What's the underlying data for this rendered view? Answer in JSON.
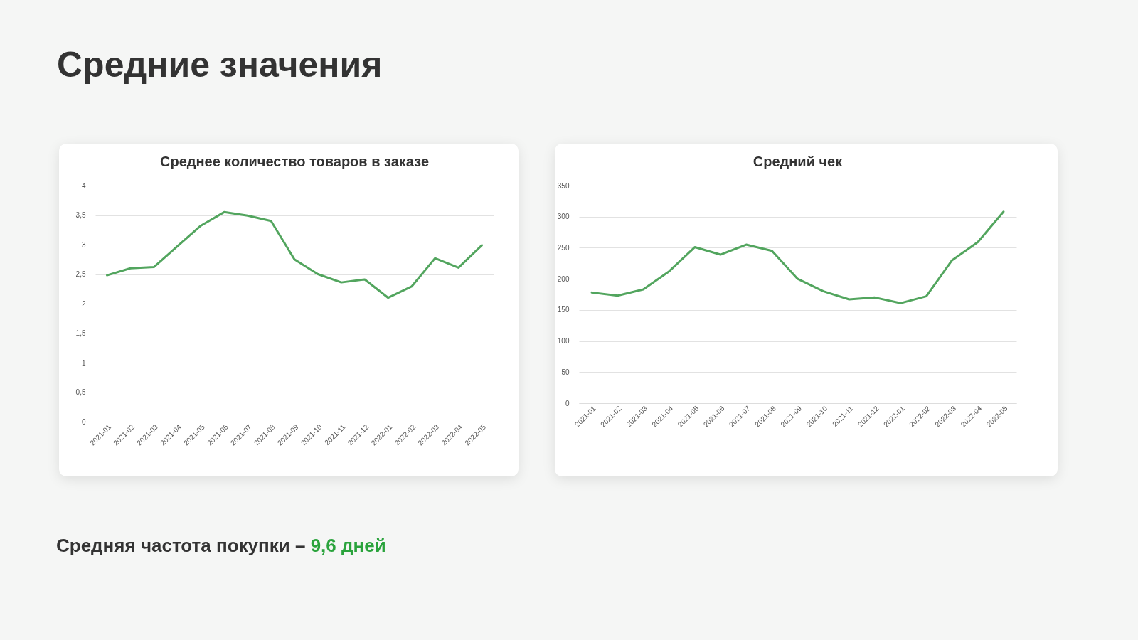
{
  "chart_data": [
    {
      "type": "line",
      "title": "Среднее количество товаров в заказе",
      "annotations": [
        "Средние значения"
      ],
      "categories": [
        "2021-01",
        "2021-02",
        "2021-03",
        "2021-04",
        "2021-05",
        "2021-06",
        "2021-07",
        "2021-08",
        "2021-09",
        "2021-10",
        "2021-11",
        "2021-12",
        "2022-01",
        "2022-02",
        "2022-03",
        "2022-04",
        "2022-05"
      ],
      "series": [
        {
          "color": "#52a55e",
          "values": [
            2.48,
            2.6,
            2.62,
            2.97,
            3.32,
            3.55,
            3.49,
            3.4,
            2.75,
            2.5,
            2.36,
            2.41,
            2.1,
            2.29,
            2.77,
            2.61,
            2.99
          ]
        }
      ],
      "ylim": [
        0,
        4
      ],
      "yticks": [
        0,
        {
          "value": 0.5,
          "label": "0,5"
        },
        1,
        {
          "value": 1.5,
          "label": "1,5"
        },
        2,
        {
          "value": 2.5,
          "label": "2,5"
        },
        3,
        {
          "value": 3.5,
          "label": "3,5"
        },
        4
      ],
      "grid": "y",
      "marker": "none",
      "line_style": "solid"
    },
    {
      "type": "line",
      "title": "Средний чек",
      "annotations": [
        "Средняя частота покупки –",
        "9,6 дней"
      ],
      "categories": [
        "2021-01",
        "2021-02",
        "2021-03",
        "2021-04",
        "2021-05",
        "2021-06",
        "2021-07",
        "2021-08",
        "2021-09",
        "2021-10",
        "2021-11",
        "2021-12",
        "2022-01",
        "2022-02",
        "2022-03",
        "2022-04",
        "2022-05"
      ],
      "series": [
        {
          "color": "#52a55e",
          "values": [
            178,
            173,
            183,
            212,
            251,
            239,
            255,
            245,
            200,
            180,
            167,
            170,
            161,
            172,
            230,
            259,
            308
          ]
        }
      ],
      "ylim": [
        0,
        350
      ],
      "yticks": [
        0,
        50,
        100,
        150,
        200,
        250,
        300,
        350
      ],
      "grid": "y",
      "marker": "none",
      "line_style": "solid"
    }
  ]
}
